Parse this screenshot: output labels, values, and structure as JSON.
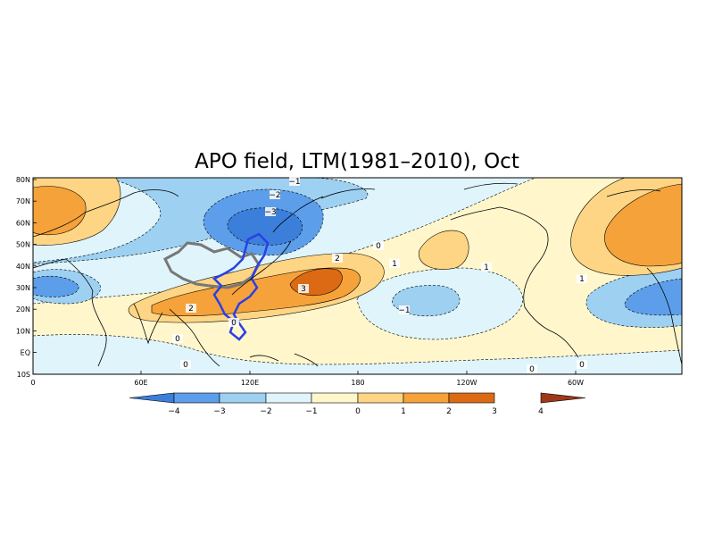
{
  "title": "APO field, LTM(1981–2010), Oct",
  "lat_labels": [
    "80N",
    "70N",
    "60N",
    "50N",
    "40N",
    "30N",
    "20N",
    "10N",
    "EQ",
    "10S"
  ],
  "lon_labels": [
    "0",
    "60E",
    "120E",
    "180",
    "120W",
    "60W"
  ],
  "colorbar": {
    "ticks": [
      "−4",
      "−3",
      "−2",
      "−1",
      "0",
      "1",
      "2",
      "3",
      "4"
    ],
    "colors": [
      "#3b7fdb",
      "#5c9eea",
      "#9ed0f2",
      "#dff4fb",
      "#fff6cc",
      "#fdd584",
      "#f5a23a",
      "#dc6a15",
      "#a0381a"
    ]
  },
  "contour_labels": [
    "−1",
    "−2",
    "−3",
    "0",
    "1",
    "2",
    "3",
    "2",
    "1",
    "−1",
    "0",
    "1",
    "0",
    "0",
    "0",
    "0"
  ],
  "region_outlines": {
    "grey": "#777777",
    "blue": "#2a3fe8"
  }
}
